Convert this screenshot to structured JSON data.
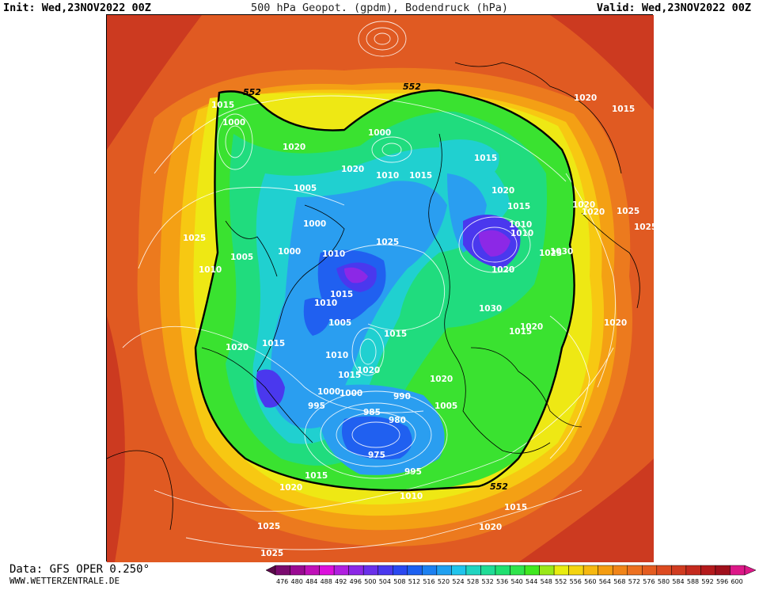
{
  "header": {
    "init_label": "Init: Wed,23NOV2022 00Z",
    "title": "500 hPa Geopot. (gpdm), Bodendruck (hPa)",
    "valid_label": "Valid: Wed,23NOV2022 00Z"
  },
  "footer": {
    "data_source": "Data: GFS OPER 0.250°",
    "website": "WWW.WETTERZENTRALE.DE"
  },
  "legend": {
    "values": [
      476,
      480,
      484,
      488,
      492,
      496,
      500,
      504,
      508,
      512,
      516,
      520,
      524,
      528,
      532,
      536,
      540,
      544,
      548,
      552,
      556,
      560,
      564,
      568,
      572,
      576,
      580,
      584,
      588,
      592,
      596,
      600
    ],
    "colors": [
      "#5a0a4a",
      "#7a0a6e",
      "#9a0a92",
      "#c010b8",
      "#dc10dc",
      "#b020e0",
      "#8c28e6",
      "#6a30ea",
      "#4a38ee",
      "#2a48f0",
      "#1c60f0",
      "#1c80f0",
      "#20a0f0",
      "#20c4ec",
      "#20d4c0",
      "#20dc96",
      "#20e070",
      "#30e44c",
      "#40e820",
      "#9ae818",
      "#e8ec10",
      "#f4d410",
      "#f6b810",
      "#f49c10",
      "#f08418",
      "#ec7020",
      "#e45c20",
      "#dc4a20",
      "#d03c20",
      "#c42a1e",
      "#b41a1c",
      "#a0101c",
      "#dc1888"
    ]
  },
  "map": {
    "contour_552_labels": [
      "552",
      "552",
      "552"
    ],
    "pressure_labels": [
      "1015",
      "1000",
      "1020",
      "1005",
      "1000",
      "1000",
      "1005",
      "1010",
      "1020",
      "1010",
      "1015",
      "1000",
      "1020",
      "1010",
      "1015",
      "1025",
      "1025",
      "1020",
      "1015",
      "1010",
      "1025",
      "1020",
      "1030",
      "1020",
      "1015",
      "1020",
      "1025",
      "1030",
      "1020",
      "1015",
      "1020",
      "1025",
      "1010",
      "1015",
      "1015",
      "1020",
      "1015",
      "1010",
      "1005",
      "1010",
      "995",
      "1000",
      "1015",
      "1000",
      "985",
      "990",
      "980",
      "975",
      "995",
      "1020",
      "1015",
      "1010",
      "1025",
      "1025",
      "1015",
      "1020",
      "1005",
      "1020",
      "1020"
    ]
  }
}
